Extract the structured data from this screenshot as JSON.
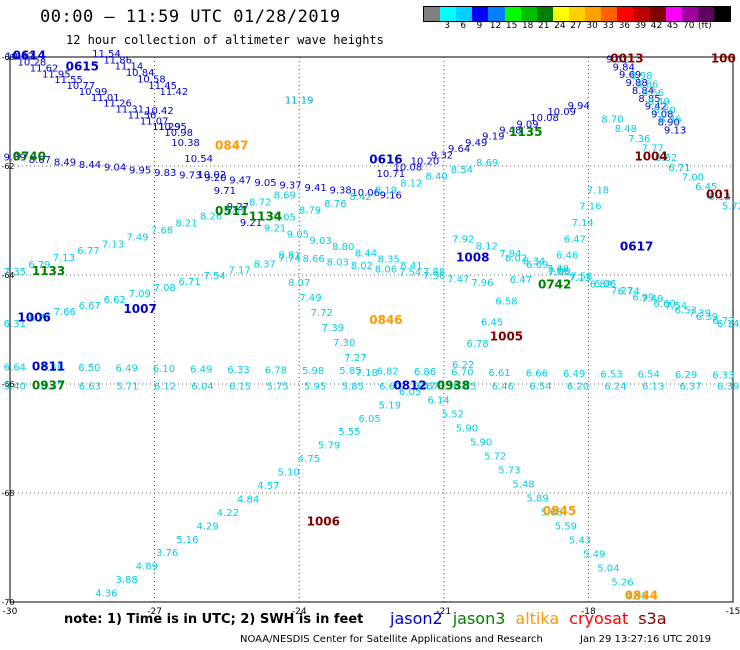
{
  "title": "00:00 – 11:59 UTC 01/28/2019",
  "subtitle": "12 hour collection of altimeter wave heights",
  "colorbar": {
    "colors": [
      "#808080",
      "#00ffff",
      "#00d0ff",
      "#0000ff",
      "#0080ff",
      "#00ff00",
      "#00c000",
      "#008000",
      "#ffff00",
      "#ffd000",
      "#ffa000",
      "#ff6000",
      "#ff0000",
      "#c00000",
      "#800000",
      "#ff00ff",
      "#a000a0",
      "#600060",
      "#000000"
    ],
    "labels": [
      "3",
      "6",
      "9",
      "12",
      "15",
      "18",
      "21",
      "24",
      "27",
      "30",
      "33",
      "36",
      "39",
      "42",
      "45",
      "70",
      "(ft)"
    ]
  },
  "axes": {
    "x_ticks": [
      "-30",
      "-27",
      "-24",
      "-21",
      "-18",
      "-15"
    ],
    "y_ticks": [
      "-60",
      "-62",
      "-64",
      "-66",
      "-68",
      "-70"
    ]
  },
  "note": "note: 1) Time is in UTC; 2) SWH is in feet",
  "satellites": [
    {
      "name": "jason2",
      "color": "#0000d0"
    },
    {
      "name": "jason3",
      "color": "#008000"
    },
    {
      "name": "altika",
      "color": "#ff9900"
    },
    {
      "name": "cryosat",
      "color": "#ff0000"
    },
    {
      "name": "s3a",
      "color": "#800000"
    }
  ],
  "footer_left": "NOAA/NESDIS Center for Satellite Applications and Research",
  "footer_right": "Jan 29 13:27:16 UTC 2019",
  "colors": {
    "light": "#00d0e8",
    "mid": "#00a0d0",
    "blue": "#0000d0",
    "green": "#008000",
    "orange": "#ff9900",
    "maroon": "#800000"
  },
  "time_labels": [
    {
      "t": "0614",
      "lon": -29.6,
      "lat": -60.05,
      "c": "blue"
    },
    {
      "t": "0615",
      "lon": -28.5,
      "lat": -60.25,
      "c": "blue"
    },
    {
      "t": "0847",
      "lon": -25.4,
      "lat": -61.7,
      "c": "orange"
    },
    {
      "t": "0740",
      "lon": -29.6,
      "lat": -61.9,
      "c": "green"
    },
    {
      "t": "0616",
      "lon": -22.2,
      "lat": -61.95,
      "c": "blue"
    },
    {
      "t": "1134",
      "lon": -24.7,
      "lat": -63.0,
      "c": "green"
    },
    {
      "t": "0511",
      "lon": -25.4,
      "lat": -62.9,
      "c": "green"
    },
    {
      "t": "1133",
      "lon": -29.2,
      "lat": -64.0,
      "c": "green"
    },
    {
      "t": "1008",
      "lon": -20.4,
      "lat": -63.75,
      "c": "blue"
    },
    {
      "t": "0742",
      "lon": -18.7,
      "lat": -64.25,
      "c": "green"
    },
    {
      "t": "0846",
      "lon": -22.2,
      "lat": -64.9,
      "c": "orange"
    },
    {
      "t": "1005",
      "lon": -19.7,
      "lat": -65.2,
      "c": "maroon"
    },
    {
      "t": "1006",
      "lon": -29.5,
      "lat": -64.85,
      "c": "blue"
    },
    {
      "t": "1007",
      "lon": -27.3,
      "lat": -64.7,
      "c": "blue"
    },
    {
      "t": "0811",
      "lon": -29.2,
      "lat": -65.75,
      "c": "blue"
    },
    {
      "t": "0937",
      "lon": -29.2,
      "lat": -66.1,
      "c": "green"
    },
    {
      "t": "0812",
      "lon": -21.7,
      "lat": -66.1,
      "c": "blue"
    },
    {
      "t": "0938",
      "lon": -20.8,
      "lat": -66.1,
      "c": "green"
    },
    {
      "t": "0845",
      "lon": -18.6,
      "lat": -68.4,
      "c": "orange"
    },
    {
      "t": "1006",
      "lon": -23.5,
      "lat": -68.6,
      "c": "maroon"
    },
    {
      "t": "0844",
      "lon": -16.9,
      "lat": -69.95,
      "c": "orange"
    },
    {
      "t": "0013",
      "lon": -17.2,
      "lat": -60.1,
      "c": "maroon"
    },
    {
      "t": "1004",
      "lon": -16.7,
      "lat": -61.9,
      "c": "maroon"
    },
    {
      "t": "1135",
      "lon": -19.3,
      "lat": -61.45,
      "c": "green"
    },
    {
      "t": "0617",
      "lon": -17.0,
      "lat": -63.55,
      "c": "blue"
    },
    {
      "t": "001",
      "lon": -15.3,
      "lat": -62.6,
      "c": "maroon"
    },
    {
      "t": "100",
      "lon": -15.2,
      "lat": -60.1,
      "c": "maroon"
    }
  ],
  "tracks": [
    {
      "c": "blue",
      "lon0": -29.8,
      "lat0": -60.05,
      "lon1": -26.5,
      "lat1": -61.45,
      "v": [
        "10.52",
        "10.28",
        "11.62",
        "11.95",
        "11.55",
        "10.77",
        "10.99",
        "11.01",
        "11.26",
        "11.31",
        "11.56",
        "11.07",
        "11.29",
        "10.98"
      ]
    },
    {
      "c": "blue",
      "lon0": -28.0,
      "lat0": -60.0,
      "lon1": -26.6,
      "lat1": -60.7,
      "v": [
        "11.54",
        "11.86",
        "11.14",
        "10.84",
        "10.58",
        "11.45",
        "11.42"
      ]
    },
    {
      "c": "blue",
      "lon0": -26.9,
      "lat0": -61.05,
      "lon1": -25.0,
      "lat1": -63.1,
      "v": [
        "10.42",
        "10.95",
        "10.38",
        "10.54",
        "10.02",
        "9.71",
        "9.27",
        "9.21"
      ]
    },
    {
      "c": "mid",
      "lon0": -24.0,
      "lat0": -60.85,
      "lon1": -24.0,
      "lat1": -61.0,
      "v": [
        "11.19"
      ]
    },
    {
      "c": "blue",
      "lon0": -29.9,
      "lat0": -61.9,
      "lon1": -22.1,
      "lat1": -62.6,
      "v": [
        "9.39",
        "8.67",
        "8.49",
        "8.44",
        "9.04",
        "9.95",
        "9.83",
        "9.73",
        "9.20",
        "9.47",
        "9.05",
        "9.37",
        "9.41",
        "9.38",
        "10.06",
        "9.16"
      ]
    },
    {
      "c": "blue",
      "lon0": -22.1,
      "lat0": -62.2,
      "lon1": -18.2,
      "lat1": -60.95,
      "v": [
        "10.71",
        "10.08",
        "10.20",
        "9.32",
        "9.64",
        "9.49",
        "9.19",
        "9.48",
        "9.09",
        "10.08",
        "10.09",
        "9.94"
      ]
    },
    {
      "c": "blue",
      "lon0": -17.4,
      "lat0": -60.1,
      "lon1": -16.2,
      "lat1": -61.4,
      "v": [
        "9.01",
        "9.84",
        "9.69",
        "9.88",
        "8.84",
        "8.85",
        "9.42",
        "9.08",
        "8.90",
        "9.13"
      ]
    },
    {
      "c": "light",
      "lon0": -29.9,
      "lat0": -64.0,
      "lon1": -24.3,
      "lat1": -62.6,
      "v": [
        "7.35",
        "6.79",
        "7.13",
        "6.77",
        "7.13",
        "7.49",
        "7.68",
        "8.21",
        "8.26",
        "8.66",
        "8.72",
        "8.69"
      ]
    },
    {
      "c": "light",
      "lon0": -24.3,
      "lat0": -63.0,
      "lon1": -20.1,
      "lat1": -62.0,
      "v": [
        "9.05",
        "8.79",
        "8.76",
        "8.42",
        "8.19",
        "8.12",
        "8.40",
        "8.54",
        "8.69"
      ]
    },
    {
      "c": "light",
      "lon0": -29.9,
      "lat0": -64.95,
      "lon1": -24.2,
      "lat1": -63.75,
      "v": [
        "6.31",
        "6.74",
        "7.66",
        "6.67",
        "6.62",
        "7.09",
        "7.08",
        "6.71",
        "7.54",
        "7.17",
        "8.37",
        "7.74"
      ]
    },
    {
      "c": "light",
      "lon0": -24.5,
      "lat0": -63.2,
      "lon1": -21.2,
      "lat1": -64.0,
      "v": [
        "9.21",
        "9.05",
        "9.03",
        "8.80",
        "8.44",
        "8.35",
        "8.41",
        "7.88"
      ]
    },
    {
      "c": "light",
      "lon0": -24.2,
      "lat0": -63.7,
      "lon1": -20.2,
      "lat1": -64.2,
      "v": [
        "8.81",
        "8.66",
        "8.03",
        "8.02",
        "8.06",
        "7.54",
        "7.56",
        "7.47",
        "7.96"
      ]
    },
    {
      "c": "light",
      "lon0": -24.0,
      "lat0": -64.2,
      "lon1": -22.6,
      "lat1": -65.85,
      "v": [
        "8.07",
        "7.49",
        "7.72",
        "7.39",
        "7.30",
        "7.27",
        "7.18"
      ]
    },
    {
      "c": "light",
      "lon0": -20.6,
      "lat0": -63.4,
      "lon1": -15.2,
      "lat1": -64.9,
      "v": [
        "7.92",
        "8.12",
        "7.94",
        "8.34",
        "7.48",
        "7.58",
        "6.96",
        "6.74",
        "7.49",
        "7.54",
        "7.39",
        "6.72"
      ]
    },
    {
      "c": "light",
      "lon0": -19.5,
      "lat0": -63.75,
      "lon1": -15.1,
      "lat1": -64.95,
      "v": [
        "8.02",
        "6.69",
        "7.05",
        "7.13",
        "6.82",
        "7.27",
        "6.99",
        "6.60",
        "6.53",
        "6.39",
        "6.14"
      ]
    },
    {
      "c": "light",
      "lon0": -19.4,
      "lat0": -64.15,
      "lon1": -20.9,
      "lat1": -66.1,
      "v": [
        "6.47",
        "6.58",
        "6.45",
        "6.78",
        "6.22",
        "6.56"
      ]
    },
    {
      "c": "light",
      "lon0": -29.9,
      "lat0": -65.75,
      "lon1": -15.2,
      "lat1": -65.9,
      "v": [
        "6.64",
        "6.58",
        "6.50",
        "6.49",
        "6.10",
        "6.49",
        "6.33",
        "6.78",
        "5.98",
        "5.85",
        "6.82",
        "6.86",
        "6.70",
        "6.61",
        "6.66",
        "6.49",
        "6.53",
        "6.54",
        "6.29",
        "6.33"
      ]
    },
    {
      "c": "light",
      "lon0": -29.9,
      "lat0": -66.1,
      "lon1": -15.1,
      "lat1": -66.1,
      "v": [
        "5.40",
        "6.47",
        "6.63",
        "5.71",
        "6.12",
        "6.04",
        "6.15",
        "5.75",
        "5.95",
        "5.85",
        "6.60",
        "6.67",
        "6.25",
        "6.46",
        "6.54",
        "6.20",
        "6.24",
        "6.13",
        "6.37",
        "6.39"
      ]
    },
    {
      "c": "light",
      "lon0": -21.7,
      "lat0": -66.2,
      "lon1": -28.0,
      "lat1": -69.9,
      "v": [
        "6.05",
        "5.19",
        "6.05",
        "5.55",
        "5.79",
        "4.75",
        "5.10",
        "4.57",
        "4.84",
        "4.22",
        "4.29",
        "5.16",
        "3.76",
        "4.89",
        "3.88",
        "4.36"
      ]
    },
    {
      "c": "light",
      "lon0": -21.4,
      "lat0": -66.1,
      "lon1": -17.0,
      "lat1": -69.95,
      "v": [
        "6.47",
        "6.14",
        "5.52",
        "5.90",
        "5.90",
        "5.72",
        "5.73",
        "5.48",
        "5.89",
        "5.68",
        "5.59",
        "5.43",
        "5.49",
        "5.04",
        "5.26",
        "4.95"
      ]
    },
    {
      "c": "light",
      "lon0": -17.8,
      "lat0": -62.5,
      "lon1": -18.6,
      "lat1": -64.0,
      "v": [
        "7.18",
        "7.16",
        "7.14",
        "6.47",
        "6.46",
        "7.00"
      ]
    },
    {
      "c": "light",
      "lon0": -17.5,
      "lat0": -61.2,
      "lon1": -15.0,
      "lat1": -62.8,
      "v": [
        "8.70",
        "8.48",
        "7.36",
        "7.77",
        "6.62",
        "6.71",
        "7.00",
        "6.45",
        "6.12",
        "5.72"
      ]
    },
    {
      "c": "light",
      "lon0": -16.9,
      "lat0": -60.4,
      "lon1": -16.3,
      "lat1": -61.2,
      "v": [
        "8.98",
        "8.86",
        "8.56",
        "8.49",
        "8.30",
        "8.36"
      ]
    }
  ]
}
